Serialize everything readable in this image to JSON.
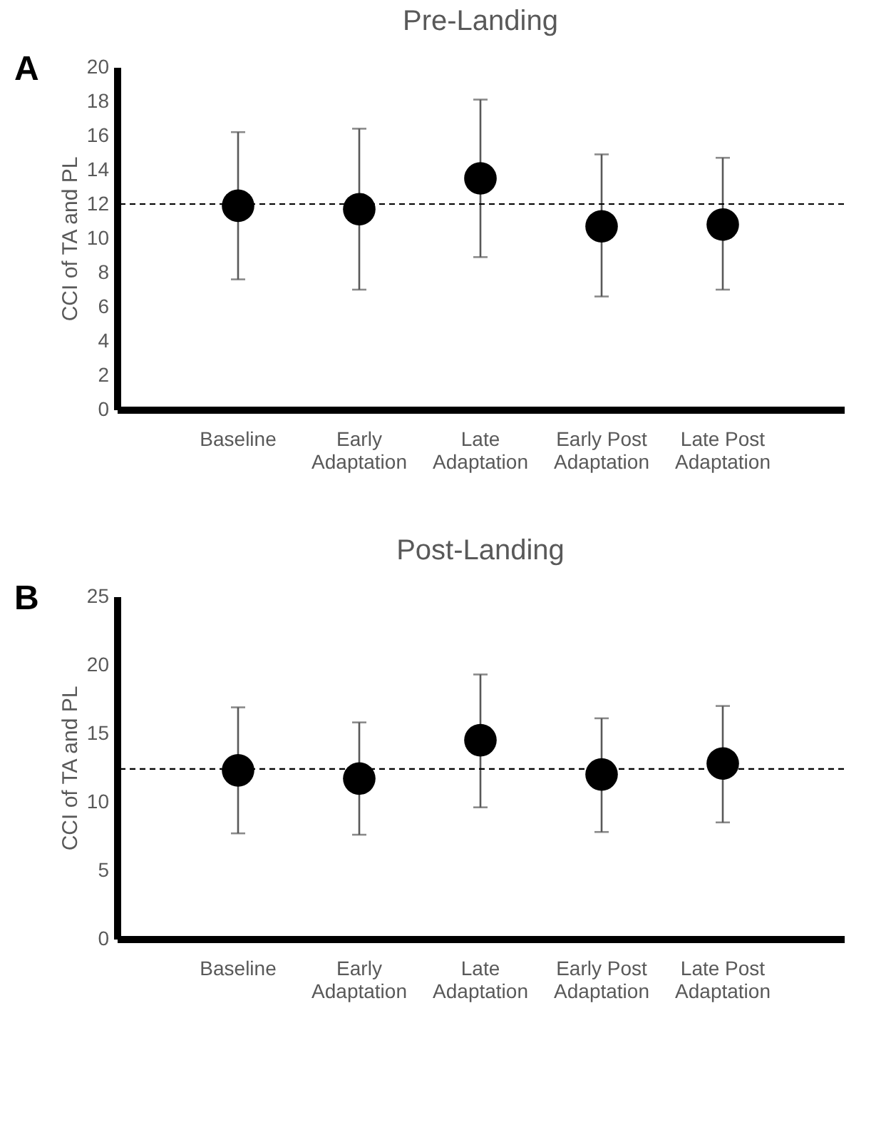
{
  "chart_data": [
    {
      "type": "scatter",
      "title": "Pre-Landing",
      "ylabel": "CCI of TA and PL",
      "annotations": [
        "A"
      ],
      "categories": [
        "Baseline",
        "Early Adaptation",
        "Late Adaptation",
        "Early Post Adaptation",
        "Late Post Adaptation"
      ],
      "marker": "circle",
      "grid": false,
      "series": [
        {
          "color": "#000000",
          "values": [
            11.9,
            11.7,
            13.5,
            10.7,
            10.8
          ],
          "errors": [
            [
              7.6,
              16.2
            ],
            [
              7.0,
              16.4
            ],
            [
              8.9,
              18.1
            ],
            [
              6.6,
              14.9
            ],
            [
              7.0,
              14.7
            ]
          ]
        }
      ],
      "ylim": [
        0,
        20
      ],
      "yticks": [
        0,
        2,
        4,
        6,
        8,
        10,
        12,
        14,
        16,
        18,
        20
      ],
      "ref_lines": [
        {
          "axis": "y",
          "value": 12,
          "color": "#000000",
          "line_style": "dashed"
        }
      ]
    },
    {
      "type": "scatter",
      "title": "Post-Landing",
      "ylabel": "CCI of TA and PL",
      "annotations": [
        "B"
      ],
      "categories": [
        "Baseline",
        "Early Adaptation",
        "Late Adaptation",
        "Early Post Adaptation",
        "Late Post Adaptation"
      ],
      "marker": "circle",
      "grid": false,
      "series": [
        {
          "color": "#000000",
          "values": [
            12.3,
            11.7,
            14.5,
            12.0,
            12.8
          ],
          "errors": [
            [
              7.7,
              16.9
            ],
            [
              7.6,
              15.8
            ],
            [
              9.6,
              19.3
            ],
            [
              7.8,
              16.1
            ],
            [
              8.5,
              17.0
            ]
          ]
        }
      ],
      "ylim": [
        0,
        25
      ],
      "yticks": [
        0,
        5,
        10,
        15,
        20,
        25
      ],
      "ref_lines": [
        {
          "axis": "y",
          "value": 12.4,
          "color": "#000000",
          "line_style": "dashed"
        }
      ]
    }
  ]
}
